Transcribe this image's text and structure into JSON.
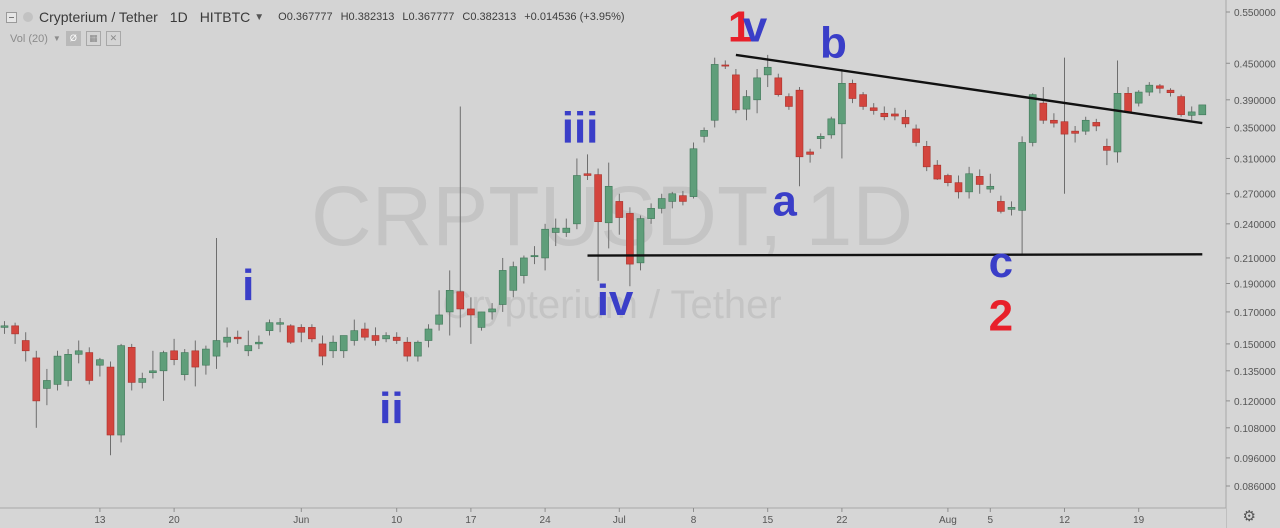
{
  "header": {
    "title": "Crypterium / Tether",
    "timeframe": "1D",
    "exchange": "HITBTC",
    "ohlc": {
      "open": "O0.367777",
      "high": "H0.382313",
      "low": "L0.367777",
      "close": "C0.382313",
      "change": "+0.014536 (+3.95%)"
    }
  },
  "volume_indicator": {
    "label": "Vol (20)"
  },
  "watermark": {
    "symbol": "CRPTUSDT, 1D",
    "name": "Crypterium / Tether"
  },
  "colors": {
    "background": "#d4d4d4",
    "up": "#5f9e7a",
    "down": "#d3453e",
    "label_blue": "#3a3ec8",
    "label_red": "#e8202a",
    "line": "#111111"
  },
  "chart_data": {
    "type": "candlestick",
    "y_scale": "log",
    "ylim": [
      0.078,
      0.58
    ],
    "price_axis": [
      "0.550000",
      "0.450000",
      "0.390000",
      "0.350000",
      "0.310000",
      "0.270000",
      "0.240000",
      "0.210000",
      "0.190000",
      "0.170000",
      "0.150000",
      "0.135000",
      "0.120000",
      "0.108000",
      "0.096000",
      "0.086000"
    ],
    "date_axis": [
      {
        "label": "13",
        "index": 9
      },
      {
        "label": "20",
        "index": 16
      },
      {
        "label": "Jun",
        "index": 28
      },
      {
        "label": "10",
        "index": 37
      },
      {
        "label": "17",
        "index": 44
      },
      {
        "label": "24",
        "index": 51
      },
      {
        "label": "Jul",
        "index": 58
      },
      {
        "label": "8",
        "index": 65
      },
      {
        "label": "15",
        "index": 72
      },
      {
        "label": "22",
        "index": 79
      },
      {
        "label": "Aug",
        "index": 89
      },
      {
        "label": "5",
        "index": 93
      },
      {
        "label": "12",
        "index": 100
      },
      {
        "label": "19",
        "index": 107
      }
    ],
    "candles": [
      {
        "o": 0.16,
        "h": 0.164,
        "l": 0.156,
        "c": 0.161
      },
      {
        "o": 0.161,
        "h": 0.163,
        "l": 0.15,
        "c": 0.156
      },
      {
        "o": 0.152,
        "h": 0.157,
        "l": 0.14,
        "c": 0.146
      },
      {
        "o": 0.142,
        "h": 0.146,
        "l": 0.108,
        "c": 0.12
      },
      {
        "o": 0.126,
        "h": 0.136,
        "l": 0.118,
        "c": 0.13
      },
      {
        "o": 0.128,
        "h": 0.146,
        "l": 0.125,
        "c": 0.143
      },
      {
        "o": 0.13,
        "h": 0.147,
        "l": 0.127,
        "c": 0.144
      },
      {
        "o": 0.144,
        "h": 0.152,
        "l": 0.139,
        "c": 0.146
      },
      {
        "o": 0.145,
        "h": 0.148,
        "l": 0.128,
        "c": 0.13
      },
      {
        "o": 0.138,
        "h": 0.142,
        "l": 0.132,
        "c": 0.141
      },
      {
        "o": 0.137,
        "h": 0.14,
        "l": 0.097,
        "c": 0.105
      },
      {
        "o": 0.105,
        "h": 0.15,
        "l": 0.102,
        "c": 0.149
      },
      {
        "o": 0.148,
        "h": 0.15,
        "l": 0.125,
        "c": 0.129
      },
      {
        "o": 0.129,
        "h": 0.134,
        "l": 0.126,
        "c": 0.131
      },
      {
        "o": 0.134,
        "h": 0.146,
        "l": 0.131,
        "c": 0.135
      },
      {
        "o": 0.135,
        "h": 0.146,
        "l": 0.12,
        "c": 0.145
      },
      {
        "o": 0.146,
        "h": 0.153,
        "l": 0.138,
        "c": 0.141
      },
      {
        "o": 0.133,
        "h": 0.147,
        "l": 0.13,
        "c": 0.145
      },
      {
        "o": 0.146,
        "h": 0.152,
        "l": 0.127,
        "c": 0.137
      },
      {
        "o": 0.138,
        "h": 0.149,
        "l": 0.133,
        "c": 0.147
      },
      {
        "o": 0.143,
        "h": 0.227,
        "l": 0.136,
        "c": 0.152
      },
      {
        "o": 0.151,
        "h": 0.16,
        "l": 0.148,
        "c": 0.154
      },
      {
        "o": 0.154,
        "h": 0.158,
        "l": 0.15,
        "c": 0.153
      },
      {
        "o": 0.146,
        "h": 0.158,
        "l": 0.143,
        "c": 0.149
      },
      {
        "o": 0.15,
        "h": 0.155,
        "l": 0.147,
        "c": 0.151
      },
      {
        "o": 0.158,
        "h": 0.165,
        "l": 0.155,
        "c": 0.163
      },
      {
        "o": 0.162,
        "h": 0.166,
        "l": 0.157,
        "c": 0.163
      },
      {
        "o": 0.161,
        "h": 0.162,
        "l": 0.15,
        "c": 0.151
      },
      {
        "o": 0.16,
        "h": 0.162,
        "l": 0.151,
        "c": 0.157
      },
      {
        "o": 0.16,
        "h": 0.162,
        "l": 0.151,
        "c": 0.153
      },
      {
        "o": 0.15,
        "h": 0.155,
        "l": 0.138,
        "c": 0.143
      },
      {
        "o": 0.146,
        "h": 0.155,
        "l": 0.142,
        "c": 0.151
      },
      {
        "o": 0.146,
        "h": 0.155,
        "l": 0.142,
        "c": 0.155
      },
      {
        "o": 0.152,
        "h": 0.165,
        "l": 0.149,
        "c": 0.158
      },
      {
        "o": 0.159,
        "h": 0.163,
        "l": 0.152,
        "c": 0.154
      },
      {
        "o": 0.155,
        "h": 0.16,
        "l": 0.149,
        "c": 0.152
      },
      {
        "o": 0.153,
        "h": 0.157,
        "l": 0.151,
        "c": 0.155
      },
      {
        "o": 0.154,
        "h": 0.157,
        "l": 0.15,
        "c": 0.152
      },
      {
        "o": 0.151,
        "h": 0.154,
        "l": 0.14,
        "c": 0.143
      },
      {
        "o": 0.143,
        "h": 0.152,
        "l": 0.14,
        "c": 0.151
      },
      {
        "o": 0.152,
        "h": 0.162,
        "l": 0.148,
        "c": 0.159
      },
      {
        "o": 0.162,
        "h": 0.185,
        "l": 0.158,
        "c": 0.168
      },
      {
        "o": 0.17,
        "h": 0.2,
        "l": 0.155,
        "c": 0.185
      },
      {
        "o": 0.184,
        "h": 0.38,
        "l": 0.16,
        "c": 0.172
      },
      {
        "o": 0.172,
        "h": 0.18,
        "l": 0.15,
        "c": 0.168
      },
      {
        "o": 0.16,
        "h": 0.17,
        "l": 0.158,
        "c": 0.17
      },
      {
        "o": 0.17,
        "h": 0.176,
        "l": 0.165,
        "c": 0.172
      },
      {
        "o": 0.175,
        "h": 0.21,
        "l": 0.17,
        "c": 0.2
      },
      {
        "o": 0.185,
        "h": 0.207,
        "l": 0.18,
        "c": 0.203
      },
      {
        "o": 0.196,
        "h": 0.212,
        "l": 0.19,
        "c": 0.21
      },
      {
        "o": 0.211,
        "h": 0.22,
        "l": 0.205,
        "c": 0.212
      },
      {
        "o": 0.21,
        "h": 0.24,
        "l": 0.2,
        "c": 0.235
      },
      {
        "o": 0.232,
        "h": 0.245,
        "l": 0.22,
        "c": 0.236
      },
      {
        "o": 0.232,
        "h": 0.245,
        "l": 0.228,
        "c": 0.236
      },
      {
        "o": 0.24,
        "h": 0.31,
        "l": 0.235,
        "c": 0.29
      },
      {
        "o": 0.292,
        "h": 0.315,
        "l": 0.285,
        "c": 0.29
      },
      {
        "o": 0.291,
        "h": 0.298,
        "l": 0.192,
        "c": 0.242
      },
      {
        "o": 0.241,
        "h": 0.305,
        "l": 0.218,
        "c": 0.278
      },
      {
        "o": 0.262,
        "h": 0.27,
        "l": 0.23,
        "c": 0.246
      },
      {
        "o": 0.25,
        "h": 0.256,
        "l": 0.188,
        "c": 0.205
      },
      {
        "o": 0.206,
        "h": 0.248,
        "l": 0.2,
        "c": 0.245
      },
      {
        "o": 0.245,
        "h": 0.26,
        "l": 0.24,
        "c": 0.255
      },
      {
        "o": 0.255,
        "h": 0.27,
        "l": 0.25,
        "c": 0.265
      },
      {
        "o": 0.262,
        "h": 0.272,
        "l": 0.255,
        "c": 0.27
      },
      {
        "o": 0.268,
        "h": 0.273,
        "l": 0.258,
        "c": 0.262
      },
      {
        "o": 0.267,
        "h": 0.33,
        "l": 0.265,
        "c": 0.322
      },
      {
        "o": 0.338,
        "h": 0.35,
        "l": 0.33,
        "c": 0.346
      },
      {
        "o": 0.36,
        "h": 0.46,
        "l": 0.35,
        "c": 0.448
      },
      {
        "o": 0.447,
        "h": 0.455,
        "l": 0.44,
        "c": 0.445
      },
      {
        "o": 0.43,
        "h": 0.44,
        "l": 0.37,
        "c": 0.375
      },
      {
        "o": 0.376,
        "h": 0.405,
        "l": 0.36,
        "c": 0.395
      },
      {
        "o": 0.39,
        "h": 0.44,
        "l": 0.37,
        "c": 0.425
      },
      {
        "o": 0.43,
        "h": 0.465,
        "l": 0.41,
        "c": 0.443
      },
      {
        "o": 0.425,
        "h": 0.432,
        "l": 0.395,
        "c": 0.398
      },
      {
        "o": 0.395,
        "h": 0.4,
        "l": 0.375,
        "c": 0.38
      },
      {
        "o": 0.405,
        "h": 0.41,
        "l": 0.278,
        "c": 0.312
      },
      {
        "o": 0.318,
        "h": 0.322,
        "l": 0.305,
        "c": 0.315
      },
      {
        "o": 0.335,
        "h": 0.342,
        "l": 0.322,
        "c": 0.338
      },
      {
        "o": 0.34,
        "h": 0.365,
        "l": 0.335,
        "c": 0.362
      },
      {
        "o": 0.355,
        "h": 0.44,
        "l": 0.31,
        "c": 0.416
      },
      {
        "o": 0.416,
        "h": 0.422,
        "l": 0.385,
        "c": 0.392
      },
      {
        "o": 0.398,
        "h": 0.402,
        "l": 0.375,
        "c": 0.38
      },
      {
        "o": 0.378,
        "h": 0.385,
        "l": 0.368,
        "c": 0.374
      },
      {
        "o": 0.37,
        "h": 0.38,
        "l": 0.36,
        "c": 0.365
      },
      {
        "o": 0.369,
        "h": 0.378,
        "l": 0.36,
        "c": 0.366
      },
      {
        "o": 0.364,
        "h": 0.375,
        "l": 0.35,
        "c": 0.355
      },
      {
        "o": 0.348,
        "h": 0.354,
        "l": 0.325,
        "c": 0.33
      },
      {
        "o": 0.325,
        "h": 0.332,
        "l": 0.295,
        "c": 0.3
      },
      {
        "o": 0.302,
        "h": 0.308,
        "l": 0.285,
        "c": 0.286
      },
      {
        "o": 0.29,
        "h": 0.292,
        "l": 0.278,
        "c": 0.282
      },
      {
        "o": 0.282,
        "h": 0.29,
        "l": 0.265,
        "c": 0.272
      },
      {
        "o": 0.272,
        "h": 0.3,
        "l": 0.265,
        "c": 0.292
      },
      {
        "o": 0.289,
        "h": 0.297,
        "l": 0.27,
        "c": 0.28
      },
      {
        "o": 0.275,
        "h": 0.292,
        "l": 0.271,
        "c": 0.278
      },
      {
        "o": 0.262,
        "h": 0.268,
        "l": 0.25,
        "c": 0.252
      },
      {
        "o": 0.254,
        "h": 0.262,
        "l": 0.248,
        "c": 0.256
      },
      {
        "o": 0.253,
        "h": 0.338,
        "l": 0.212,
        "c": 0.33
      },
      {
        "o": 0.33,
        "h": 0.4,
        "l": 0.325,
        "c": 0.398
      },
      {
        "o": 0.385,
        "h": 0.41,
        "l": 0.355,
        "c": 0.36
      },
      {
        "o": 0.36,
        "h": 0.37,
        "l": 0.35,
        "c": 0.356
      },
      {
        "o": 0.358,
        "h": 0.46,
        "l": 0.27,
        "c": 0.341
      },
      {
        "o": 0.345,
        "h": 0.352,
        "l": 0.33,
        "c": 0.342
      },
      {
        "o": 0.345,
        "h": 0.365,
        "l": 0.34,
        "c": 0.36
      },
      {
        "o": 0.357,
        "h": 0.362,
        "l": 0.345,
        "c": 0.352
      },
      {
        "o": 0.325,
        "h": 0.335,
        "l": 0.302,
        "c": 0.32
      },
      {
        "o": 0.318,
        "h": 0.455,
        "l": 0.305,
        "c": 0.4
      },
      {
        "o": 0.4,
        "h": 0.41,
        "l": 0.37,
        "c": 0.372
      },
      {
        "o": 0.385,
        "h": 0.405,
        "l": 0.38,
        "c": 0.402
      },
      {
        "o": 0.402,
        "h": 0.418,
        "l": 0.396,
        "c": 0.413
      },
      {
        "o": 0.412,
        "h": 0.415,
        "l": 0.4,
        "c": 0.408
      },
      {
        "o": 0.405,
        "h": 0.408,
        "l": 0.395,
        "c": 0.401
      },
      {
        "o": 0.395,
        "h": 0.398,
        "l": 0.365,
        "c": 0.368
      },
      {
        "o": 0.367,
        "h": 0.38,
        "l": 0.36,
        "c": 0.372
      },
      {
        "o": 0.367777,
        "h": 0.382313,
        "l": 0.367777,
        "c": 0.382313
      }
    ],
    "trendlines": [
      {
        "from": {
          "index": 69,
          "price": 0.465
        },
        "to": {
          "index": 113,
          "price": 0.356
        }
      },
      {
        "from": {
          "index": 55,
          "price": 0.212
        },
        "to": {
          "index": 113,
          "price": 0.213
        }
      }
    ],
    "wave_labels": [
      {
        "text": "1",
        "index": 69.4,
        "price": 0.49,
        "color": "red"
      },
      {
        "text": "v",
        "index": 70.8,
        "price": 0.49,
        "color": "blue"
      },
      {
        "text": "b",
        "index": 78.2,
        "price": 0.46,
        "color": "blue"
      },
      {
        "text": "iii",
        "index": 54.3,
        "price": 0.33,
        "color": "blue"
      },
      {
        "text": "a",
        "index": 73.6,
        "price": 0.248,
        "color": "blue"
      },
      {
        "text": "i",
        "index": 23.0,
        "price": 0.178,
        "color": "blue"
      },
      {
        "text": "iv",
        "index": 57.6,
        "price": 0.168,
        "color": "blue"
      },
      {
        "text": "ii",
        "index": 36.5,
        "price": 0.11,
        "color": "blue"
      },
      {
        "text": "c",
        "index": 94.0,
        "price": 0.195,
        "color": "blue"
      },
      {
        "text": "2",
        "index": 94.0,
        "price": 0.158,
        "color": "red"
      }
    ]
  }
}
